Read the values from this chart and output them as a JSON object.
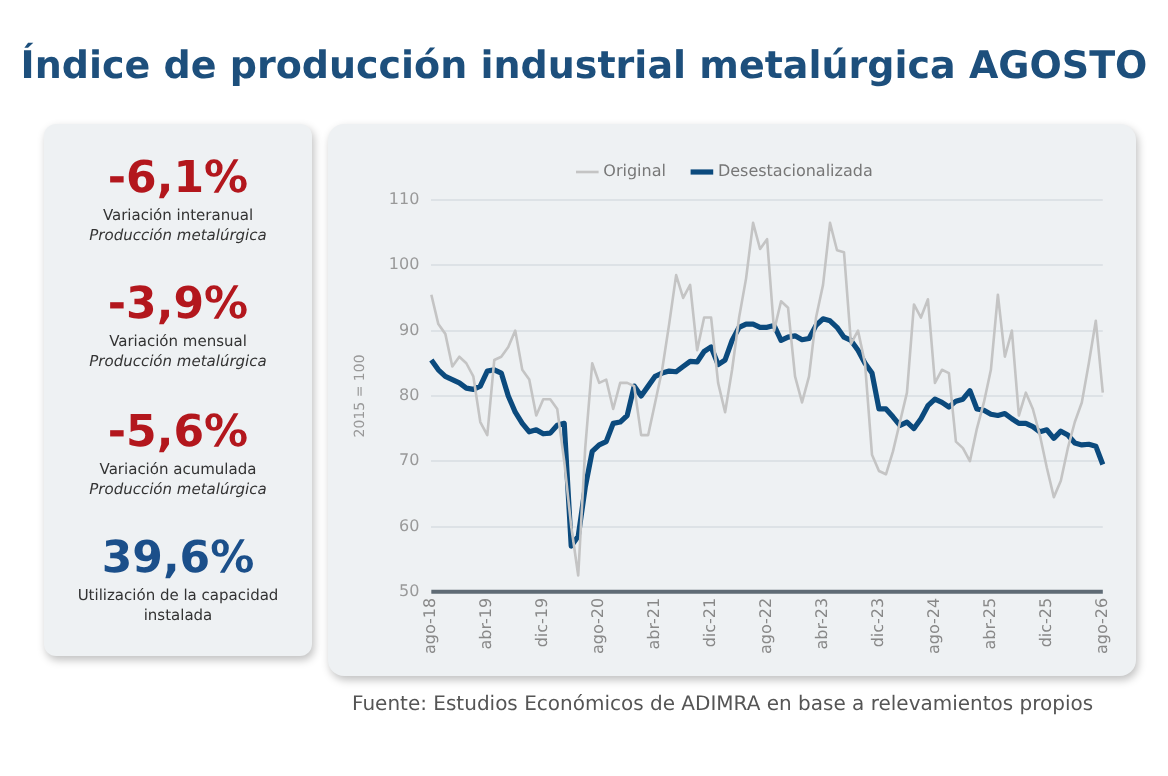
{
  "chart_data": [
    {
      "type": "other",
      "annotations": [
        "-6,1%",
        "Variación interanual",
        "Producción metalúrgica",
        "-3,9%",
        "Variación mensual",
        "Producción metalúrgica",
        "-5,6%",
        "Variación acumulada",
        "Producción metalúrgica",
        "39,6%",
        "Utilización de la capacidad instalada"
      ]
    },
    {
      "type": "line",
      "title": "Índice de producción industrial metalúrgica AGOSTO",
      "ylabel": "2015 = 100",
      "categories": [
        "ago-18",
        null,
        null,
        null,
        null,
        null,
        null,
        null,
        "abr-19",
        null,
        null,
        null,
        null,
        null,
        null,
        null,
        "dic-19",
        null,
        null,
        null,
        null,
        null,
        null,
        null,
        "ago-20",
        null,
        null,
        null,
        null,
        null,
        null,
        null,
        "abr-21",
        null,
        null,
        null,
        null,
        null,
        null,
        null,
        "dic-21",
        null,
        null,
        null,
        null,
        null,
        null,
        null,
        "ago-22",
        null,
        null,
        null,
        null,
        null,
        null,
        null,
        "abr-23",
        null,
        null,
        null,
        null,
        null,
        null,
        null,
        "dic-23",
        null,
        null,
        null,
        null,
        null,
        null,
        null,
        "ago-24",
        null,
        null,
        null,
        null,
        null,
        null,
        null,
        "abr-25",
        null,
        null,
        null,
        null,
        null,
        null,
        null,
        "dic-25",
        null,
        null,
        null,
        null,
        null,
        null,
        null,
        "ago-26"
      ],
      "series": [
        {
          "name": "Original",
          "color": "#c4c4c4",
          "values": [
            95.5,
            91,
            89.5,
            84.5,
            86,
            85,
            83,
            76,
            74,
            85.5,
            86,
            87.5,
            90,
            84,
            82.5,
            77,
            79.5,
            79.5,
            78,
            70,
            60,
            52.5,
            72,
            85,
            82,
            82.5,
            78,
            82,
            82,
            81.5,
            74,
            74,
            79,
            84,
            91,
            98.5,
            95,
            97,
            87,
            92,
            92,
            82,
            77.5,
            84,
            92,
            98,
            106.5,
            102.5,
            104,
            90,
            94.5,
            93.5,
            83,
            79,
            83,
            92,
            97,
            106.5,
            102.3,
            102,
            88,
            90,
            85,
            71,
            68.5,
            68,
            71.5,
            76,
            80.5,
            94,
            92,
            94.8,
            82,
            84,
            83.5,
            73,
            72,
            70,
            75,
            79,
            84,
            95.5,
            86,
            90,
            77,
            80.5,
            78,
            74,
            69,
            64.5,
            67,
            72,
            76,
            79,
            85,
            91.5,
            80.5
          ]
        },
        {
          "name": "Desestacionalizada",
          "color": "#0b4a7d",
          "values": [
            85.5,
            84,
            83,
            82.5,
            82,
            81.2,
            81,
            81.5,
            83.8,
            84,
            83.5,
            80,
            77.5,
            75.8,
            74.5,
            74.8,
            74.2,
            74.3,
            75.5,
            75.8,
            57,
            58.5,
            66,
            71.5,
            72.5,
            73,
            75.8,
            76,
            77,
            81.5,
            80,
            81.5,
            83,
            83.5,
            83.8,
            83.7,
            84.5,
            85.3,
            85.2,
            86.8,
            87.5,
            84.8,
            85.5,
            88.5,
            90.5,
            91,
            91,
            90.5,
            90.5,
            90.8,
            88.5,
            89,
            89.2,
            88.6,
            88.8,
            90.8,
            91.8,
            91.5,
            90.5,
            89,
            88.5,
            87,
            85,
            83.5,
            78,
            78,
            76.8,
            75.5,
            76,
            75,
            76.5,
            78.5,
            79.5,
            79,
            78.3,
            79.2,
            79.5,
            80.8,
            78,
            77.8,
            77.2,
            77,
            77.3,
            76.5,
            75.8,
            75.8,
            75.3,
            74.5,
            74.8,
            73.5,
            74.6,
            74,
            72.8,
            72.5,
            72.6,
            72.3,
            69.5
          ]
        }
      ],
      "ylim": [
        50,
        110
      ],
      "yticks": [
        50,
        60,
        70,
        80,
        90,
        100,
        110
      ],
      "grid": "y",
      "legend": "top",
      "marker": "none",
      "line_style": "solid",
      "annotations": [
        "Fuente: Estudios Económicos de ADIMRA en base a relevamientos propios"
      ]
    }
  ]
}
